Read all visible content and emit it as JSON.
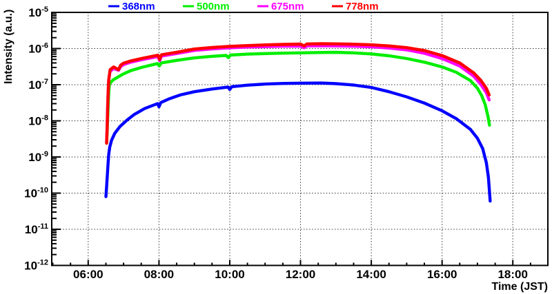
{
  "chart_data": {
    "type": "line",
    "title": "",
    "xlabel": "Time (JST)",
    "ylabel": "Intensity (a.u.)",
    "grid": true,
    "x_axis": {
      "unit": "hours-JST",
      "range_hours": [
        4.97,
        18.99
      ],
      "major_ticks": [
        6,
        8,
        10,
        12,
        14,
        16,
        18
      ],
      "major_tick_labels": [
        "06:00",
        "08:00",
        "10:00",
        "12:00",
        "14:00",
        "16:00",
        "18:00"
      ],
      "minor_tick_step_hours": 0.5
    },
    "y_axis": {
      "scale": "log",
      "range_exponents": [
        -12,
        -5
      ],
      "major_tick_exponents": [
        -5,
        -6,
        -7,
        -8,
        -9,
        -10,
        -11,
        -12
      ],
      "tick_label_base": "10"
    },
    "legend": {
      "position": "top",
      "items": [
        {
          "label": "368nm",
          "color": "#0000ff"
        },
        {
          "label": "500nm",
          "color": "#00ee00"
        },
        {
          "label": "675nm",
          "color": "#ff00ff"
        },
        {
          "label": "778nm",
          "color": "#ff0000"
        }
      ]
    },
    "series": [
      {
        "name": "368nm",
        "color": "#0000ff",
        "points": [
          [
            6.5,
            8e-11
          ],
          [
            6.52,
            1.5e-10
          ],
          [
            6.54,
            3e-10
          ],
          [
            6.56,
            6e-10
          ],
          [
            6.58,
            1.2e-09
          ],
          [
            6.61,
            1.9e-09
          ],
          [
            6.66,
            2.9e-09
          ],
          [
            6.75,
            4.5e-09
          ],
          [
            6.9,
            7e-09
          ],
          [
            7.1,
            1.05e-08
          ],
          [
            7.3,
            1.5e-08
          ],
          [
            7.6,
            2.2e-08
          ],
          [
            7.96,
            3e-08
          ],
          [
            8.0,
            2.45e-08
          ],
          [
            8.05,
            3.2e-08
          ],
          [
            8.3,
            4.1e-08
          ],
          [
            8.6,
            5.2e-08
          ],
          [
            9.0,
            6.4e-08
          ],
          [
            9.5,
            7.6e-08
          ],
          [
            9.95,
            8.6e-08
          ],
          [
            10.0,
            7.4e-08
          ],
          [
            10.06,
            8.8e-08
          ],
          [
            10.5,
            9.7e-08
          ],
          [
            11.0,
            1.04e-07
          ],
          [
            11.5,
            1.08e-07
          ],
          [
            12.0,
            1.1e-07
          ],
          [
            12.6,
            1.11e-07
          ],
          [
            13.0,
            1.07e-07
          ],
          [
            13.5,
            9.8e-08
          ],
          [
            14.0,
            8.4e-08
          ],
          [
            14.5,
            6.4e-08
          ],
          [
            15.0,
            4.6e-08
          ],
          [
            15.5,
            3.1e-08
          ],
          [
            16.0,
            1.9e-08
          ],
          [
            16.4,
            1.15e-08
          ],
          [
            16.8,
            5.8e-09
          ],
          [
            17.0,
            3.3e-09
          ],
          [
            17.15,
            1.7e-09
          ],
          [
            17.25,
            7e-10
          ],
          [
            17.31,
            2.8e-10
          ],
          [
            17.36,
            6e-11
          ]
        ]
      },
      {
        "name": "500nm",
        "color": "#00ee00",
        "points": [
          [
            6.52,
            2.4e-09
          ],
          [
            6.535,
            5e-09
          ],
          [
            6.55,
            1.1e-08
          ],
          [
            6.565,
            2.6e-08
          ],
          [
            6.58,
            6e-08
          ],
          [
            6.6,
            1.05e-07
          ],
          [
            6.7,
            1.35e-07
          ],
          [
            6.85,
            1.65e-07
          ],
          [
            7.0,
            2e-07
          ],
          [
            7.2,
            2.45e-07
          ],
          [
            7.5,
            3e-07
          ],
          [
            7.96,
            3.85e-07
          ],
          [
            8.01,
            3.3e-07
          ],
          [
            8.06,
            4e-07
          ],
          [
            8.5,
            4.7e-07
          ],
          [
            9.0,
            5.5e-07
          ],
          [
            9.5,
            6.1e-07
          ],
          [
            9.9,
            6.45e-07
          ],
          [
            9.96,
            5.6e-07
          ],
          [
            10.02,
            6.6e-07
          ],
          [
            10.5,
            7e-07
          ],
          [
            11.0,
            7.25e-07
          ],
          [
            11.5,
            7.45e-07
          ],
          [
            12.0,
            7.6e-07
          ],
          [
            12.5,
            7.75e-07
          ],
          [
            13.0,
            7.85e-07
          ],
          [
            13.5,
            7.6e-07
          ],
          [
            14.0,
            7.1e-07
          ],
          [
            14.5,
            6.3e-07
          ],
          [
            15.0,
            5.3e-07
          ],
          [
            15.5,
            4.2e-07
          ],
          [
            16.0,
            3.1e-07
          ],
          [
            16.4,
            2.2e-07
          ],
          [
            16.8,
            1.3e-07
          ],
          [
            17.0,
            8e-08
          ],
          [
            17.12,
            5e-08
          ],
          [
            17.22,
            2.8e-08
          ],
          [
            17.3,
            1.3e-08
          ],
          [
            17.34,
            7.6e-09
          ]
        ]
      },
      {
        "name": "675nm",
        "color": "#ff00ff",
        "points": [
          [
            6.52,
            2.6e-09
          ],
          [
            6.535,
            7e-09
          ],
          [
            6.55,
            2.4e-08
          ],
          [
            6.565,
            7e-08
          ],
          [
            6.58,
            1.4e-07
          ],
          [
            6.62,
            2.35e-07
          ],
          [
            6.72,
            2.8e-07
          ],
          [
            6.86,
            2.5e-07
          ],
          [
            6.92,
            3.2e-07
          ],
          [
            7.0,
            3.6e-07
          ],
          [
            7.2,
            4.2e-07
          ],
          [
            7.5,
            4.9e-07
          ],
          [
            7.97,
            6e-07
          ],
          [
            8.02,
            4.6e-07
          ],
          [
            8.07,
            6.2e-07
          ],
          [
            8.5,
            7.3e-07
          ],
          [
            9.0,
            8.9e-07
          ],
          [
            9.5,
            9.8e-07
          ],
          [
            10.0,
            1.05e-06
          ],
          [
            10.5,
            1.1e-06
          ],
          [
            11.0,
            1.13e-06
          ],
          [
            11.5,
            1.16e-06
          ],
          [
            12.0,
            1.17e-06
          ],
          [
            12.1,
            1.05e-06
          ],
          [
            12.18,
            1.18e-06
          ],
          [
            12.6,
            1.19e-06
          ],
          [
            13.0,
            1.18e-06
          ],
          [
            13.5,
            1.16e-06
          ],
          [
            14.0,
            1.12e-06
          ],
          [
            14.5,
            1.03e-06
          ],
          [
            15.0,
            9.2e-07
          ],
          [
            15.5,
            7.4e-07
          ],
          [
            16.0,
            5.3e-07
          ],
          [
            16.5,
            3.3e-07
          ],
          [
            16.9,
            1.7e-07
          ],
          [
            17.1,
            1e-07
          ],
          [
            17.25,
            6e-08
          ],
          [
            17.33,
            3.8e-08
          ]
        ]
      },
      {
        "name": "778nm",
        "color": "#ff0000",
        "points": [
          [
            6.52,
            2.4e-09
          ],
          [
            6.535,
            6e-09
          ],
          [
            6.55,
            2.2e-08
          ],
          [
            6.565,
            6.5e-08
          ],
          [
            6.58,
            1.35e-07
          ],
          [
            6.62,
            2.6e-07
          ],
          [
            6.72,
            3.1e-07
          ],
          [
            6.86,
            2.6e-07
          ],
          [
            6.92,
            3.5e-07
          ],
          [
            7.0,
            3.95e-07
          ],
          [
            7.2,
            4.55e-07
          ],
          [
            7.5,
            5.3e-07
          ],
          [
            7.97,
            6.55e-07
          ],
          [
            8.02,
            5e-07
          ],
          [
            8.07,
            6.75e-07
          ],
          [
            8.5,
            7.9e-07
          ],
          [
            9.0,
            9.7e-07
          ],
          [
            9.5,
            1.07e-06
          ],
          [
            10.0,
            1.15e-06
          ],
          [
            10.5,
            1.21e-06
          ],
          [
            11.0,
            1.26e-06
          ],
          [
            11.5,
            1.3e-06
          ],
          [
            12.0,
            1.33e-06
          ],
          [
            12.1,
            1.18e-06
          ],
          [
            12.18,
            1.34e-06
          ],
          [
            12.6,
            1.36e-06
          ],
          [
            13.0,
            1.35e-06
          ],
          [
            13.5,
            1.32e-06
          ],
          [
            14.0,
            1.27e-06
          ],
          [
            14.5,
            1.18e-06
          ],
          [
            15.0,
            1.06e-06
          ],
          [
            15.5,
            8.8e-07
          ],
          [
            16.0,
            6.4e-07
          ],
          [
            16.5,
            4e-07
          ],
          [
            16.9,
            2.1e-07
          ],
          [
            17.1,
            1.3e-07
          ],
          [
            17.25,
            8e-08
          ],
          [
            17.33,
            5.2e-08
          ]
        ]
      }
    ]
  }
}
